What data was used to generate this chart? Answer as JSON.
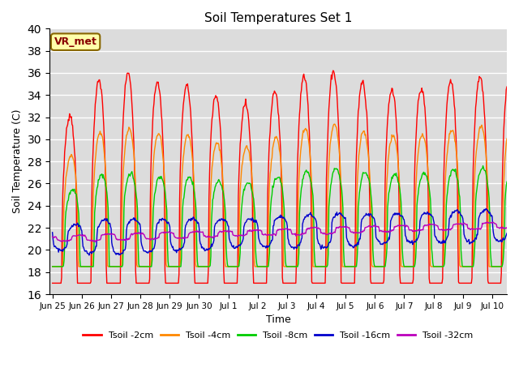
{
  "title": "Soil Temperatures Set 1",
  "xlabel": "Time",
  "ylabel": "Soil Temperature (C)",
  "ylim": [
    16,
    40
  ],
  "yticks": [
    16,
    18,
    20,
    22,
    24,
    26,
    28,
    30,
    32,
    34,
    36,
    38,
    40
  ],
  "bg_color": "#dcdcdc",
  "line_colors": {
    "Tsoil -2cm": "#ff0000",
    "Tsoil -4cm": "#ff8800",
    "Tsoil -8cm": "#00cc00",
    "Tsoil -16cm": "#0000cc",
    "Tsoil -32cm": "#bb00bb"
  },
  "annotation_text": "VR_met",
  "annotation_bg": "#ffffaa",
  "annotation_border": "#886600",
  "annotation_text_color": "#880000",
  "x_tick_labels": [
    "Jun 25",
    "Jun 26",
    "Jun 27",
    "Jun 28",
    "Jun 29",
    "Jun 30",
    "Jul 1",
    "Jul 2",
    "Jul 3",
    "Jul 4",
    "Jul 5",
    "Jul 6",
    "Jul 7",
    "Jul 8",
    "Jul 9",
    "Jul 10"
  ],
  "n_days": 15.5,
  "samples_per_day": 48
}
